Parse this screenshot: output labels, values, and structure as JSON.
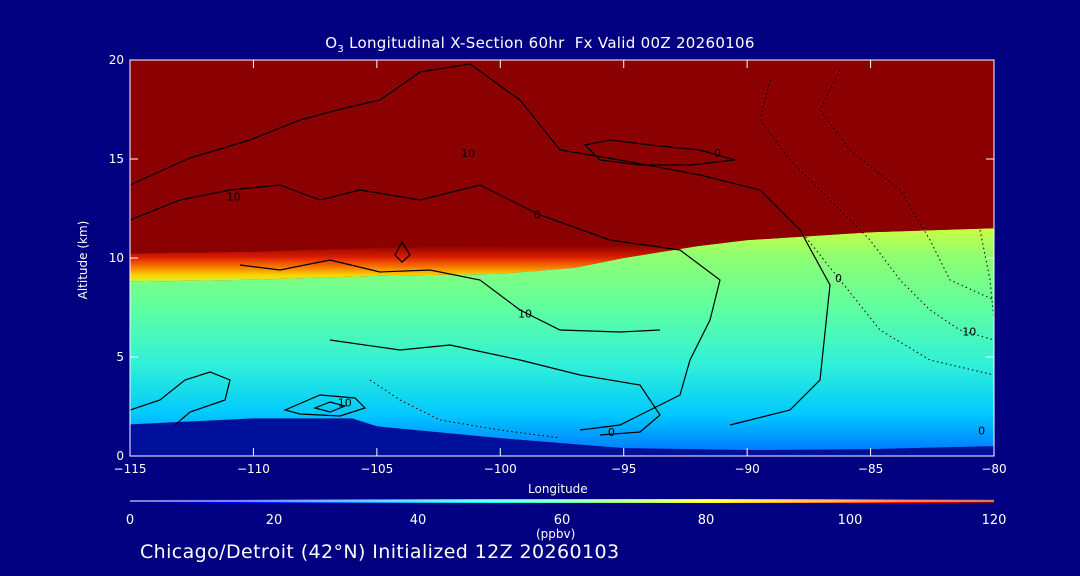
{
  "chart_data": {
    "type": "heatmap",
    "title_prefix": "O",
    "title_sub": "3",
    "title_rest": " Longitudinal X-Section 60hr  Fx Valid 00Z 20260106",
    "xlabel": "Longitude",
    "ylabel": "Altitude (km)",
    "xlim": [
      -115,
      -80
    ],
    "ylim": [
      0,
      20
    ],
    "x_ticks": [
      -115,
      -110,
      -105,
      -100,
      -95,
      -90,
      -85,
      -80
    ],
    "x_tick_labels": [
      "−115",
      "−110",
      "−105",
      "−100",
      "−95",
      "−90",
      "−85",
      "−80"
    ],
    "y_ticks": [
      0,
      5,
      10,
      15,
      20
    ],
    "y_tick_labels": [
      "0",
      "5",
      "10",
      "15",
      "20"
    ],
    "colorbar": {
      "min": 0,
      "max": 120,
      "ticks": [
        0,
        20,
        40,
        60,
        80,
        100,
        120
      ],
      "tick_labels": [
        "0",
        "20",
        "40",
        "60",
        "80",
        "100",
        "120"
      ],
      "unit": "(ppbv)"
    },
    "tropopause_km": [
      [
        -115,
        8.8
      ],
      [
        -110,
        8.9
      ],
      [
        -105,
        9.1
      ],
      [
        -100,
        9.2
      ],
      [
        -97,
        9.5
      ],
      [
        -95,
        10.0
      ],
      [
        -92,
        10.6
      ],
      [
        -90,
        10.9
      ],
      [
        -85,
        11.3
      ],
      [
        -80,
        11.5
      ]
    ],
    "surface_km": [
      [
        -115,
        1.6
      ],
      [
        -110,
        1.9
      ],
      [
        -106,
        1.9
      ],
      [
        -105,
        1.5
      ],
      [
        -100,
        0.9
      ],
      [
        -95,
        0.4
      ],
      [
        -90,
        0.3
      ],
      [
        -85,
        0.35
      ],
      [
        -80,
        0.5
      ]
    ],
    "contour_labels": [
      {
        "text": "10",
        "lon": -101.3,
        "lat_km": 15.3
      },
      {
        "text": "0",
        "lon": -91.2,
        "lat_km": 15.3
      },
      {
        "text": "10",
        "lon": -110.8,
        "lat_km": 13.1
      },
      {
        "text": "0",
        "lon": -98.5,
        "lat_km": 12.2
      },
      {
        "text": "0",
        "lon": -86.3,
        "lat_km": 9.0
      },
      {
        "text": "10",
        "lon": -99.0,
        "lat_km": 7.2
      },
      {
        "text": "10",
        "lon": -81.0,
        "lat_km": 6.3
      },
      {
        "text": "10",
        "lon": -106.3,
        "lat_km": 2.7
      },
      {
        "text": "0",
        "lon": -95.5,
        "lat_km": 1.2
      },
      {
        "text": "0",
        "lon": -80.5,
        "lat_km": 1.3
      }
    ]
  },
  "footer": "Chicago/Detroit (42°N) Initialized 12Z 20260103"
}
